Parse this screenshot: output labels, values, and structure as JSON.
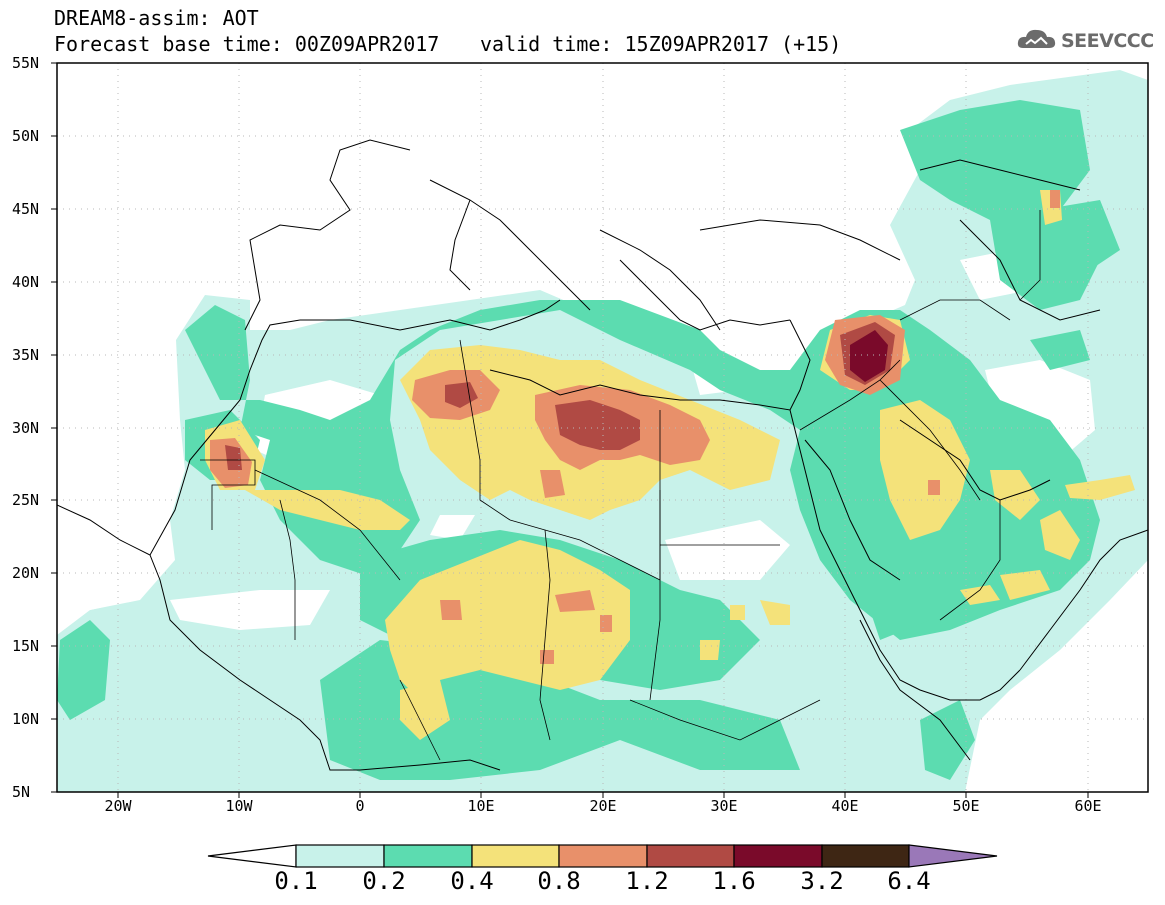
{
  "header": {
    "title_line1": "DREAM8-assim: AOT",
    "title_line2": "Forecast base time: 00Z09APR2017",
    "valid_time": "valid time: 15Z09APR2017 (+15)"
  },
  "logo": {
    "text": "SEEVCCC",
    "icon": "cloud-icon"
  },
  "axes": {
    "lat_labels": [
      "55N",
      "50N",
      "45N",
      "40N",
      "35N",
      "30N",
      "25N",
      "20N",
      "15N",
      "10N",
      "5N"
    ],
    "lon_labels": [
      "20W",
      "10W",
      "0",
      "10E",
      "20E",
      "30E",
      "40E",
      "50E",
      "60E"
    ],
    "lat_range": [
      5,
      55
    ],
    "lon_range": [
      -25,
      65
    ],
    "grid": "dotted"
  },
  "colorbar": {
    "labels": [
      "0.1",
      "0.2",
      "0.4",
      "0.8",
      "1.2",
      "1.6",
      "3.2",
      "6.4"
    ],
    "colors": [
      "#c8f2ea",
      "#5cdcb0",
      "#f4e27a",
      "#e8906a",
      "#b04a44",
      "#7a0a2a",
      "#3e2614",
      "#9a78b8"
    ]
  },
  "colors": {
    "c01": "#c8f2ea",
    "c02": "#5cdcb0",
    "c04": "#f4e27a",
    "c08": "#e8906a",
    "c12": "#b04a44",
    "c16": "#7a0a2a",
    "c32": "#3e2614",
    "c64": "#9a78b8"
  }
}
